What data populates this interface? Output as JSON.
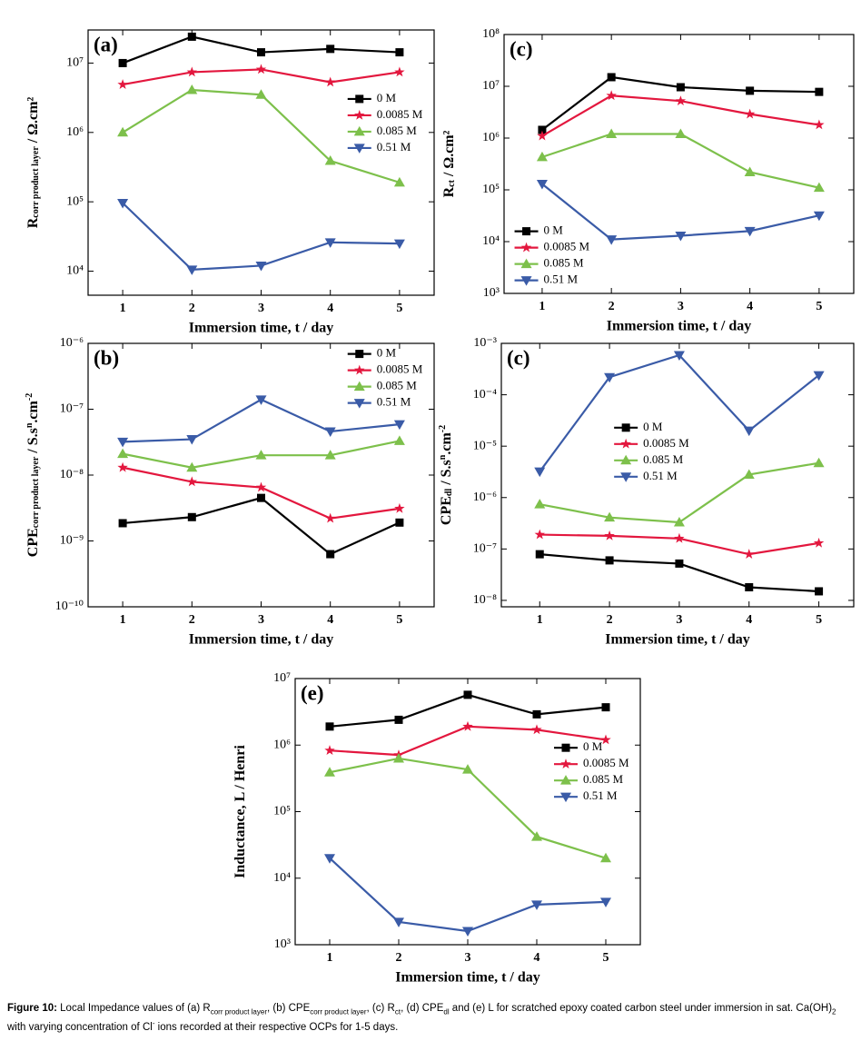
{
  "chart_data": [
    {
      "type": "line",
      "label": "(a)",
      "xlabel": "Immersion time, t / day",
      "ylabel": [
        {
          "text": "R"
        },
        {
          "text": "corr product layer",
          "style": "sub"
        },
        {
          "text": " / Ω.cm²"
        }
      ],
      "x": [
        1,
        2,
        3,
        4,
        5
      ],
      "xlim": [
        0.5,
        5.5
      ],
      "xticks": [
        1,
        2,
        3,
        4,
        5
      ],
      "ylog": true,
      "ylim": [
        4500,
        30000000
      ],
      "yticks": [
        {
          "value": 10000,
          "label": "10⁴"
        },
        {
          "value": 100000,
          "label": "10⁵"
        },
        {
          "value": 1000000,
          "label": "10⁶"
        },
        {
          "value": 10000000,
          "label": "10⁷"
        }
      ],
      "legend": "center right",
      "series": [
        {
          "name": "0 M",
          "color": "#000000",
          "marker": "square",
          "values": [
            10000000,
            24000000,
            14300000,
            16000000,
            14300000
          ]
        },
        {
          "name": "0.0085 M",
          "color": "#e3173e",
          "marker": "star",
          "values": [
            4900000,
            7400000,
            8100000,
            5300000,
            7400000
          ]
        },
        {
          "name": "0.085 M",
          "color": "#7dc04b",
          "marker": "triangle-up",
          "values": [
            1000000,
            4100000,
            3500000,
            390000,
            190000
          ]
        },
        {
          "name": "0.51 M",
          "color": "#3a5ba7",
          "marker": "triangle-down",
          "values": [
            96000,
            10500,
            12000,
            26000,
            25000
          ]
        }
      ]
    },
    {
      "type": "line",
      "label": "(c)",
      "xlabel": "Immersion time, t / day",
      "ylabel": [
        {
          "text": "R"
        },
        {
          "text": "ct",
          "style": "sub"
        },
        {
          "text": " / Ω.cm²"
        }
      ],
      "x": [
        1,
        2,
        3,
        4,
        5
      ],
      "xlim": [
        0.45,
        5.5
      ],
      "xticks": [
        1,
        2,
        3,
        4,
        5
      ],
      "ylog": true,
      "ylim": [
        1000,
        100000000
      ],
      "yticks": [
        {
          "value": 1000,
          "label": "10³"
        },
        {
          "value": 10000,
          "label": "10⁴"
        },
        {
          "value": 100000,
          "label": "10⁵"
        },
        {
          "value": 1000000,
          "label": "10⁶"
        },
        {
          "value": 10000000,
          "label": "10⁷"
        },
        {
          "value": 100000000,
          "label": "10⁸"
        }
      ],
      "legend": "lower left",
      "series": [
        {
          "name": "0 M",
          "color": "#000000",
          "marker": "square",
          "values": [
            1440000,
            15000000,
            9600000,
            8200000,
            7800000
          ]
        },
        {
          "name": "0.0085 M",
          "color": "#e3173e",
          "marker": "star",
          "values": [
            1100000,
            6600000,
            5200000,
            2900000,
            1800000
          ]
        },
        {
          "name": "0.085 M",
          "color": "#7dc04b",
          "marker": "triangle-up",
          "values": [
            430000,
            1200000,
            1200000,
            220000,
            110000
          ]
        },
        {
          "name": "0.51 M",
          "color": "#3a5ba7",
          "marker": "triangle-down",
          "values": [
            130000,
            11000,
            13000,
            16000,
            32000
          ]
        }
      ]
    },
    {
      "type": "line",
      "label": "(b)",
      "xlabel": "Immersion time, t / day",
      "ylabel": [
        {
          "text": "CPE"
        },
        {
          "text": "corr product layer",
          "style": "sub"
        },
        {
          "text": " / S.s"
        },
        {
          "text": "n",
          "style": "sup"
        },
        {
          "text": ".cm"
        },
        {
          "text": "-2",
          "style": "sup"
        }
      ],
      "x": [
        1,
        2,
        3,
        4,
        5
      ],
      "xlim": [
        0.5,
        5.5
      ],
      "xticks": [
        1,
        2,
        3,
        4,
        5
      ],
      "ylog": true,
      "ylim": [
        1e-10,
        1e-06
      ],
      "yticks": [
        {
          "value": 1e-10,
          "label": "10⁻¹⁰"
        },
        {
          "value": 1e-09,
          "label": "10⁻⁹"
        },
        {
          "value": 1e-08,
          "label": "10⁻⁸"
        },
        {
          "value": 1e-07,
          "label": "10⁻⁷"
        },
        {
          "value": 1e-06,
          "label": "10⁻⁶"
        }
      ],
      "legend": "upper right",
      "series": [
        {
          "name": "0 M",
          "color": "#000000",
          "marker": "square",
          "values": [
            1.86e-09,
            2.3e-09,
            4.5e-09,
            6.3e-10,
            1.9e-09
          ]
        },
        {
          "name": "0.0085 M",
          "color": "#e3173e",
          "marker": "star",
          "values": [
            1.3e-08,
            7.9e-09,
            6.5e-09,
            2.2e-09,
            3.1e-09
          ]
        },
        {
          "name": "0.085 M",
          "color": "#7dc04b",
          "marker": "triangle-up",
          "values": [
            2.1e-08,
            1.3e-08,
            2e-08,
            2e-08,
            3.3e-08
          ]
        },
        {
          "name": "0.51 M",
          "color": "#3a5ba7",
          "marker": "triangle-down",
          "values": [
            3.2e-08,
            3.5e-08,
            1.4e-07,
            4.6e-08,
            5.9e-08
          ]
        }
      ]
    },
    {
      "type": "line",
      "label": "(c)",
      "xlabel": "Immersion time, t / day",
      "ylabel": [
        {
          "text": "CPE"
        },
        {
          "text": "dl",
          "style": "sub"
        },
        {
          "text": " / S.s"
        },
        {
          "text": "n",
          "style": "sup"
        },
        {
          "text": ".cm"
        },
        {
          "text": "-2",
          "style": "sup"
        }
      ],
      "x": [
        1,
        2,
        3,
        4,
        5
      ],
      "xlim": [
        0.45,
        5.5
      ],
      "xticks": [
        1,
        2,
        3,
        4,
        5
      ],
      "ylog": true,
      "ylim": [
        7.5e-09,
        0.001
      ],
      "yticks": [
        {
          "value": 1e-08,
          "label": "10⁻⁸"
        },
        {
          "value": 1e-07,
          "label": "10⁻⁷"
        },
        {
          "value": 1e-06,
          "label": "10⁻⁶"
        },
        {
          "value": 1e-05,
          "label": "10⁻⁵"
        },
        {
          "value": 0.0001,
          "label": "10⁻⁴"
        },
        {
          "value": 0.001,
          "label": "10⁻³"
        }
      ],
      "legend": "center left",
      "series": [
        {
          "name": "0 M",
          "color": "#000000",
          "marker": "square",
          "values": [
            7.9e-08,
            6e-08,
            5.2e-08,
            1.8e-08,
            1.5e-08
          ]
        },
        {
          "name": "0.0085 M",
          "color": "#e3173e",
          "marker": "star",
          "values": [
            1.9e-07,
            1.8e-07,
            1.6e-07,
            7.9e-08,
            1.3e-07
          ]
        },
        {
          "name": "0.085 M",
          "color": "#7dc04b",
          "marker": "triangle-up",
          "values": [
            7.4e-07,
            4.1e-07,
            3.3e-07,
            2.8e-06,
            4.7e-06
          ]
        },
        {
          "name": "0.51 M",
          "color": "#3a5ba7",
          "marker": "triangle-down",
          "values": [
            3.2e-06,
            0.00022,
            0.00059,
            2e-05,
            0.00024
          ]
        }
      ]
    },
    {
      "type": "line",
      "label": "(e)",
      "xlabel": "Immersion time, t / day",
      "ylabel": [
        {
          "text": "Inductance, L / Henri"
        }
      ],
      "x": [
        1,
        2,
        3,
        4,
        5
      ],
      "xlim": [
        0.5,
        5.5
      ],
      "xticks": [
        1,
        2,
        3,
        4,
        5
      ],
      "ylog": true,
      "ylim": [
        1000,
        10000000
      ],
      "yticks": [
        {
          "value": 1000,
          "label": "10³"
        },
        {
          "value": 10000,
          "label": "10⁴"
        },
        {
          "value": 100000,
          "label": "10⁵"
        },
        {
          "value": 1000000,
          "label": "10⁶"
        },
        {
          "value": 10000000,
          "label": "10⁷"
        }
      ],
      "legend": "center right",
      "series": [
        {
          "name": "0 M",
          "color": "#000000",
          "marker": "square",
          "values": [
            1900000,
            2400000,
            5700000,
            2900000,
            3700000
          ]
        },
        {
          "name": "0.0085 M",
          "color": "#e3173e",
          "marker": "star",
          "values": [
            830000,
            710000,
            1900000,
            1700000,
            1200000
          ]
        },
        {
          "name": "0.085 M",
          "color": "#7dc04b",
          "marker": "triangle-up",
          "values": [
            390000,
            630000,
            430000,
            42000,
            20000
          ]
        },
        {
          "name": "0.51 M",
          "color": "#3a5ba7",
          "marker": "triangle-down",
          "values": [
            20000,
            2200,
            1600,
            4000,
            4400
          ]
        }
      ]
    }
  ],
  "caption": [
    {
      "text": "Figure 10:",
      "style": "bold"
    },
    {
      "text": " Local Impedance values of (a) R"
    },
    {
      "text": "corr product layer",
      "style": "sub"
    },
    {
      "text": ", (b) CPE"
    },
    {
      "text": "corr product layer",
      "style": "sub"
    },
    {
      "text": ", (c) R"
    },
    {
      "text": "ct",
      "style": "sub"
    },
    {
      "text": ", (d) CPE"
    },
    {
      "text": "dl",
      "style": "sub"
    },
    {
      "text": " and (e) L for scratched epoxy coated carbon steel under immersion in sat. Ca(OH)"
    },
    {
      "text": "2",
      "style": "sub"
    },
    {
      "text": " with varying concentration of Cl"
    },
    {
      "text": "-",
      "style": "sup"
    },
    {
      "text": " ions recorded at their respective OCPs for 1-5 days."
    }
  ]
}
